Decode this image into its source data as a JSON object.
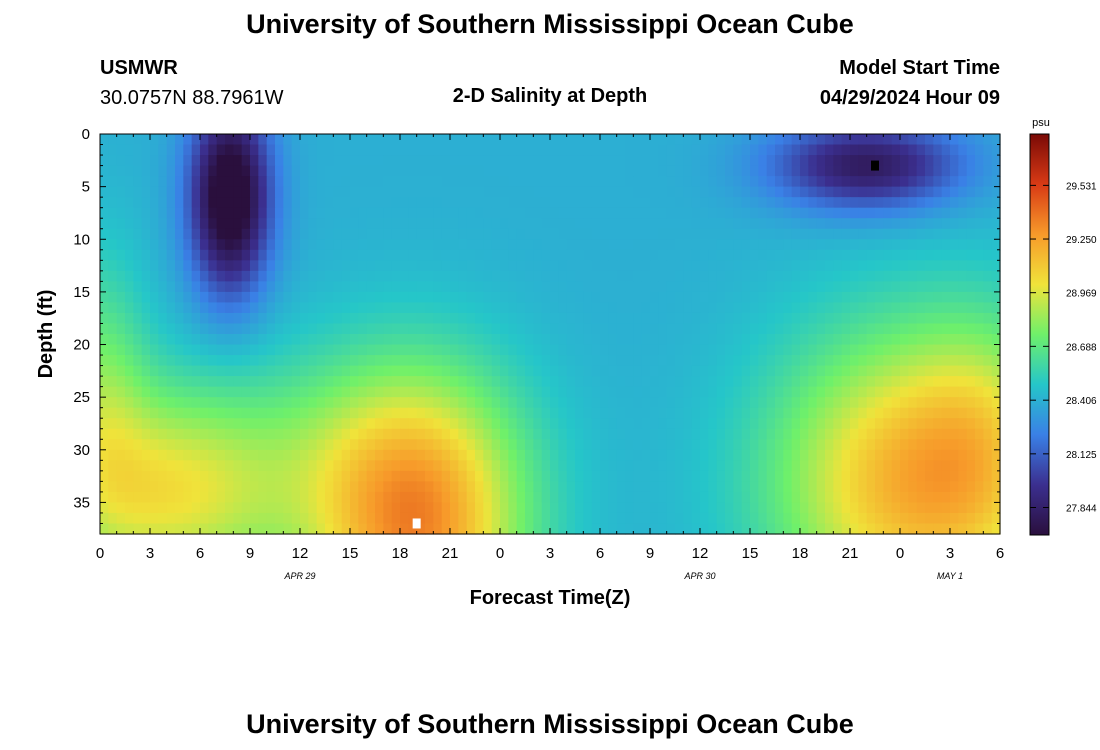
{
  "header": {
    "title": "University of Southern Mississippi Ocean Cube",
    "station_id": "USMWR",
    "coordinates": "30.0757N  88.7961W",
    "plot_title": "2-D Salinity at Depth",
    "model_start_label": "Model Start Time",
    "model_start_value": "04/29/2024 Hour 09"
  },
  "footer": {
    "title": "University of Southern Mississippi Ocean Cube"
  },
  "chart_data": {
    "type": "heatmap",
    "title": "2-D Salinity at Depth",
    "xlabel": "Forecast Time(Z)",
    "ylabel": "Depth (ft)",
    "x_range_hours": [
      0,
      54
    ],
    "y_range": [
      0,
      38
    ],
    "y_inverted": true,
    "x_tick_labels": [
      "0",
      "3",
      "6",
      "9",
      "12",
      "15",
      "18",
      "21",
      "0",
      "3",
      "6",
      "9",
      "12",
      "15",
      "18",
      "21",
      "0",
      "3",
      "6"
    ],
    "y_ticks": [
      0,
      5,
      10,
      15,
      20,
      25,
      30,
      35
    ],
    "y_tick_labels": [
      "0",
      "5",
      "10",
      "15",
      "20",
      "25",
      "30",
      "35"
    ],
    "date_labels": [
      {
        "text": "APR 29",
        "hour": 12
      },
      {
        "text": "APR 30",
        "hour": 36
      },
      {
        "text": "MAY 1",
        "hour": 51
      }
    ],
    "colorbar": {
      "unit": "psu",
      "min": 27.7,
      "max": 29.8,
      "ticks": [
        27.844,
        28.125,
        28.406,
        28.688,
        28.969,
        29.25,
        29.531
      ],
      "tick_labels": [
        "27.844",
        "28.125",
        "28.406",
        "28.688",
        "28.969",
        "29.250",
        "29.531"
      ],
      "colors": [
        "#2a0f3d",
        "#3b2f8f",
        "#3a80e6",
        "#25c6c9",
        "#6ff06a",
        "#f0e33a",
        "#f79a2a",
        "#d83a15",
        "#7a0a06"
      ]
    },
    "field_components": [
      {
        "kind": "blob",
        "hour": 7.8,
        "depth": 6,
        "sx": 1.7,
        "sy": 6.5,
        "amp": -0.85
      },
      {
        "kind": "blob",
        "hour": 46,
        "depth": 3,
        "sx": 4,
        "sy": 3,
        "amp": -0.6
      },
      {
        "kind": "blob",
        "hour": 19,
        "depth": 38,
        "sx": 4.5,
        "sy": 10,
        "amp": 0.85
      },
      {
        "kind": "blob",
        "hour": 16,
        "depth": 30,
        "sx": 6,
        "sy": 7,
        "amp": 0.2
      },
      {
        "kind": "blob",
        "hour": 4,
        "depth": 34,
        "sx": 5,
        "sy": 7,
        "amp": 0.6
      },
      {
        "kind": "blob",
        "hour": 0,
        "depth": 24,
        "sx": 2,
        "sy": 9,
        "amp": 0.3
      },
      {
        "kind": "blob",
        "hour": 49,
        "depth": 33,
        "sx": 6,
        "sy": 10,
        "amp": 0.8
      },
      {
        "kind": "blob",
        "hour": 53,
        "depth": 28,
        "sx": 3,
        "sy": 8,
        "amp": 0.2
      }
    ],
    "base_value": 28.4,
    "grid_cells": {
      "nx": 108,
      "ny": 38
    },
    "markers": [
      {
        "hour": 46.5,
        "depth": 3,
        "color": "#000000"
      },
      {
        "hour": 19,
        "depth": 37,
        "color": "#ffffff"
      }
    ]
  }
}
